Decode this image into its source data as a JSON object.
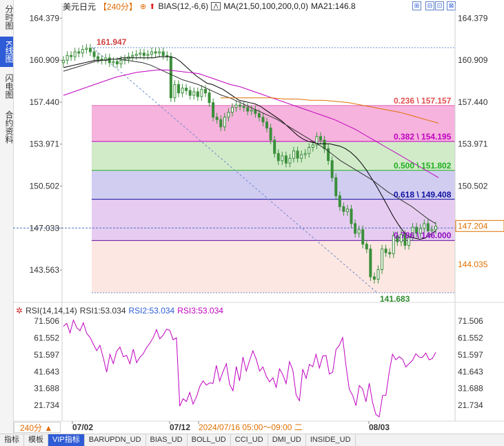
{
  "sidebar": {
    "tabs": [
      {
        "label": "分时图",
        "active": false
      },
      {
        "label": "K线图",
        "active": true
      },
      {
        "label": "闪电图",
        "active": false
      },
      {
        "label": "合约资料",
        "active": false
      }
    ]
  },
  "toolbar": {
    "symbol": "美元日元",
    "period": "【240分】",
    "bias": "BIAS(12,-6,6)",
    "ma": "MA(21,50,100,200,0,0)",
    "ma21": "MA21:146.8"
  },
  "window_buttons": [
    "⊞",
    "⊟",
    "⊡",
    "⊠"
  ],
  "rsi_header": {
    "title": "RSI(14,14,14)",
    "rsi1": "RSI1:53.034",
    "rsi2": "RSI2:53.034",
    "rsi3": "RSI3:53.034"
  },
  "bottom_bar": {
    "period": "240分 ▲",
    "tabs": [
      {
        "label": "指标",
        "active": false
      },
      {
        "label": "模板",
        "active": false
      },
      {
        "label": "VIP指标",
        "active": true
      },
      {
        "label": "BARUPDN_UD",
        "active": false
      },
      {
        "label": "BIAS_UD",
        "active": false
      },
      {
        "label": "BOLL_UD",
        "active": false
      },
      {
        "label": "CCI_UD",
        "active": false
      },
      {
        "label": "DMI_UD",
        "active": false
      },
      {
        "label": "INSIDE_UD",
        "active": false
      }
    ]
  },
  "colors": {
    "candle": "#3b8f3b",
    "fib_0236": "#f4a6d7",
    "fib_0382": "#c9e8c0",
    "fib_0500": "#c9c4ee",
    "fib_0618": "#e3c3ee",
    "fib_0786": "#fde3dd",
    "ma21": "#000000",
    "ma50": "#333333",
    "ma100": "#c000c0",
    "ma200": "#e07000",
    "rsi": "#c000c0"
  },
  "chart_data": [
    {
      "type": "candlestick",
      "y_axis_ticks": [
        "164.379",
        "160.909",
        "157.440",
        "153.971",
        "150.502",
        "147.033",
        "143.563"
      ],
      "y_axis_right_ticks": [
        "164.379",
        "160.909",
        "157.440",
        "153.971",
        "150.502",
        "147.204",
        "144.035"
      ],
      "ylim": [
        141.0,
        165.2
      ],
      "x_labels": [
        "07/02",
        "07/12",
        "2024/07/16 05:00～09:00 二",
        "08/03"
      ],
      "current_price": "147.204",
      "high_label": "161.947",
      "low_label": "141.683",
      "fib_levels": [
        {
          "ratio": "0.236",
          "price": 157.157,
          "label": "0.236 \\ 157.157"
        },
        {
          "ratio": "0.382",
          "price": 154.195,
          "label": "0.382 \\ 154.195"
        },
        {
          "ratio": "0.500",
          "price": 151.802,
          "label": "0.500 \\ 151.802"
        },
        {
          "ratio": "0.618",
          "price": 149.408,
          "label": "0.618 \\ 149.408"
        },
        {
          "ratio": "0.786",
          "price": 146.0,
          "label": "0.786 \\ 146.000"
        }
      ],
      "fib_top": 161.947,
      "fib_bottom": 141.683,
      "closes": [
        160.9,
        161.3,
        161.2,
        161.6,
        161.5,
        161.8,
        161.9,
        161.6,
        161.2,
        161.0,
        160.9,
        161.1,
        160.7,
        160.8,
        160.6,
        160.9,
        161.0,
        161.2,
        161.3,
        161.4,
        161.5,
        161.3,
        161.4,
        161.6,
        161.5,
        161.6,
        161.3,
        161.2,
        157.8,
        158.9,
        158.2,
        158.6,
        158.4,
        158.0,
        158.3,
        157.9,
        158.5,
        158.2,
        157.4,
        156.2,
        156.0,
        155.4,
        156.2,
        156.6,
        157.0,
        157.2,
        157.1,
        157.0,
        156.7,
        156.8,
        156.5,
        156.2,
        155.8,
        155.3,
        154.3,
        153.2,
        152.6,
        153.0,
        152.4,
        152.8,
        153.4,
        152.8,
        153.1,
        153.2,
        153.7,
        153.9,
        154.6,
        154.3,
        153.6,
        152.6,
        151.2,
        149.7,
        148.8,
        148.4,
        148.6,
        147.4,
        146.6,
        146.9,
        145.7,
        145.3,
        143.0,
        142.8,
        143.6,
        145.3,
        145.0,
        144.9,
        146.4,
        145.9,
        146.5,
        145.6,
        146.3,
        147.1,
        146.6,
        147.0,
        147.4,
        146.8,
        146.9,
        147.2
      ],
      "ma21": [
        160.3,
        160.4,
        160.5,
        160.6,
        160.7,
        160.8,
        160.9,
        160.9,
        160.9,
        161.0,
        161.0,
        161.1,
        161.1,
        161.1,
        161.1,
        161.1,
        161.1,
        161.1,
        161.2,
        161.2,
        161.2,
        161.1,
        160.8,
        160.4,
        160.0,
        159.6,
        159.3,
        159.0,
        158.9,
        158.7,
        158.5,
        158.2,
        157.9,
        157.6,
        157.5,
        157.4,
        157.3,
        157.1,
        156.8,
        156.5,
        156.2,
        155.9,
        155.5,
        155.1,
        154.7,
        154.4,
        154.2,
        154.1,
        154.0,
        154.0,
        154.0,
        153.9,
        153.8,
        153.6,
        153.3,
        152.9,
        152.4,
        151.8,
        151.1,
        150.4,
        149.6,
        148.8,
        148.0,
        147.3,
        146.7,
        146.3,
        146.2,
        146.1,
        146.2,
        146.5,
        146.8
      ],
      "ma50": [
        160.0,
        160.2,
        160.4,
        160.6,
        160.8,
        160.9,
        161.0,
        161.0,
        160.9,
        160.8,
        160.7,
        160.5,
        160.2,
        159.9,
        159.6,
        159.3,
        159.1,
        158.9,
        158.6,
        158.3,
        158.0,
        157.8,
        157.5,
        157.2,
        156.9,
        156.6,
        156.3,
        156.0,
        155.6,
        155.2,
        154.8,
        154.4,
        154.0,
        153.6,
        153.1,
        152.6,
        152.2,
        151.8,
        151.4,
        151.0,
        150.5,
        150.0,
        149.6,
        149.2,
        148.8,
        148.3,
        147.8,
        147.4
      ],
      "ma100": [
        158.0,
        158.3,
        158.6,
        158.9,
        159.2,
        159.5,
        159.7,
        159.9,
        160.0,
        160.1,
        160.1,
        160.0,
        159.9,
        159.8,
        159.5,
        159.2,
        158.9,
        158.7,
        158.4,
        158.1,
        157.8,
        157.5,
        157.2,
        156.9,
        156.6,
        156.3,
        156.0,
        155.6,
        155.2,
        154.7,
        154.2,
        153.7,
        153.2,
        152.7,
        152.2,
        151.7,
        151.2
      ],
      "ma200": [
        157.8,
        157.8,
        157.8,
        157.8,
        157.8,
        157.7,
        157.7,
        157.6,
        157.6,
        157.5,
        157.4,
        157.2,
        157.0,
        156.8,
        156.6,
        156.3,
        156.0,
        155.7
      ],
      "rsi_ticks": [
        "71.506",
        "61.552",
        "51.597",
        "41.643",
        "31.688",
        "21.734"
      ],
      "rsi_ylim": [
        14.5,
        75.5
      ],
      "rsi_values": [
        68.3,
        70.1,
        64.4,
        72.0,
        67.5,
        65.7,
        70.4,
        64.1,
        61.8,
        57.8,
        54.0,
        57.1,
        49.6,
        41.4,
        51.8,
        46.4,
        53.5,
        56.1,
        50.4,
        51.2,
        46.3,
        54.9,
        46.9,
        50.1,
        52.2,
        55.7,
        58.4,
        61.6,
        66.4,
        60.9,
        63.1,
        66.6,
        66.0,
        60.4,
        61.6,
        21.3,
        25.7,
        24.0,
        29.4,
        22.5,
        26.7,
        32.8,
        36.2,
        33.7,
        35.0,
        34.7,
        45.3,
        36.1,
        41.6,
        46.3,
        34.1,
        30.4,
        44.6,
        36.2,
        50.2,
        42.0,
        48.2,
        53.9,
        49.0,
        41.9,
        44.4,
        39.1,
        35.6,
        38.0,
        32.4,
        43.3,
        39.8,
        34.6,
        47.5,
        42.5,
        27.9,
        24.5,
        43.1,
        37.7,
        45.9,
        44.6,
        51.8,
        43.8,
        50.8,
        51.1,
        40.2,
        41.3,
        54.7,
        57.1,
        61.7,
        45.2,
        31.3,
        27.6,
        21.6,
        33.4,
        31.4,
        23.9,
        34.8,
        23.4,
        16.4,
        15.0,
        27.6,
        27.7,
        41.4,
        51.9,
        48.6,
        50.4,
        49.0,
        44.4,
        46.4,
        48.3,
        52.1,
        50.2,
        50.0,
        52.6,
        48.6,
        49.4,
        53.0
      ]
    }
  ]
}
